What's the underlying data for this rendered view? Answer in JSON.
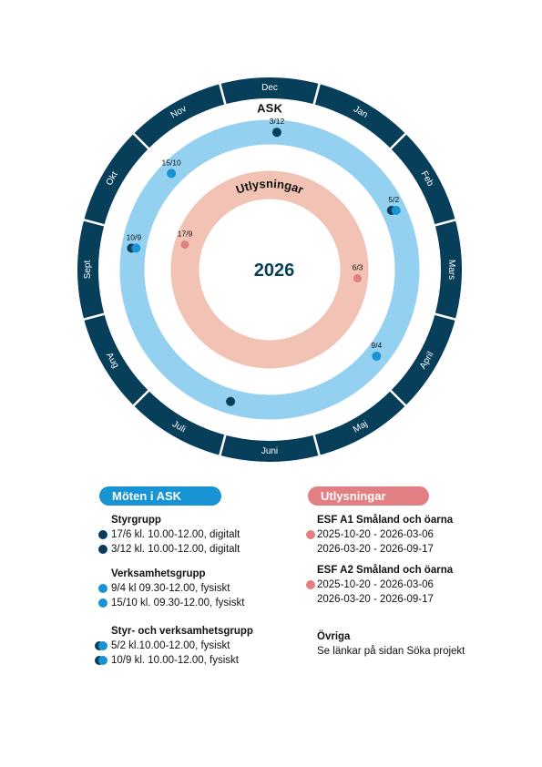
{
  "colors": {
    "month_ring": "#073e5a",
    "ask_ring": "#94d0ef",
    "ask_dot_light": "#1893d3",
    "ask_dot_dark": "#073e5a",
    "utl_ring": "#f2c3b4",
    "utl_dot": "#e17f84",
    "center_text": "#073e5a"
  },
  "wheel": {
    "year": "2026",
    "ask_label": "ASK",
    "utl_label": "Utlysningar",
    "months": [
      "Jan",
      "Feb",
      "Mars",
      "April",
      "Maj",
      "Juni",
      "Juli",
      "Aug",
      "Sept",
      "Okt",
      "Nov",
      "Dec"
    ],
    "ask_markers": [
      {
        "label": "3/12",
        "month_pos": 11.1,
        "style": "dark"
      },
      {
        "label": "5/2",
        "month_pos": 1.15,
        "style": "dual"
      },
      {
        "label": "15/10",
        "month_pos": 9.48,
        "style": "light"
      },
      {
        "label": "9/4",
        "month_pos": 3.3,
        "style": "light"
      },
      {
        "label": "10/9",
        "month_pos": 8.3,
        "style": "dual"
      },
      {
        "label": "",
        "month_pos": 5.55,
        "style": "dark"
      }
    ],
    "utl_markers": [
      {
        "label": "6/3",
        "month_pos": 2.19
      },
      {
        "label": "17/9",
        "month_pos": 8.55
      }
    ]
  },
  "legend_ask": {
    "title": "Möten i ASK",
    "groups": [
      {
        "title": "Styrgrupp",
        "items": [
          {
            "text": "17/6 kl. 10.00-12.00, digitalt",
            "style": "dark"
          },
          {
            "text": "3/12 kl. 10.00-12.00, digitalt",
            "style": "dark"
          }
        ]
      },
      {
        "title": "Verksamhetsgrupp",
        "items": [
          {
            "text": "9/4 kl 09.30-12.00, fysiskt",
            "style": "light"
          },
          {
            "text": "15/10 kl. 09.30-12.00, fysiskt",
            "style": "light"
          }
        ]
      },
      {
        "title": "Styr- och verksamhetsgrupp",
        "items": [
          {
            "text": "5/2 kl.10.00-12.00, fysiskt",
            "style": "dual"
          },
          {
            "text": "10/9 kl. 10.00-12.00, fysiskt",
            "style": "dual"
          }
        ]
      }
    ]
  },
  "legend_utl": {
    "title": "Utlysningar",
    "groups": [
      {
        "title": "ESF A1 Småland och öarna",
        "lines": [
          "2025-10-20 - 2026-03-06",
          "2026-03-20 - 2026-09-17"
        ]
      },
      {
        "title": "ESF A2 Småland och öarna",
        "lines": [
          "2025-10-20 - 2026-03-06",
          "2026-03-20 - 2026-09-17"
        ]
      }
    ],
    "other_title": "Övriga",
    "other_text": "Se länkar på sidan Söka projekt"
  }
}
